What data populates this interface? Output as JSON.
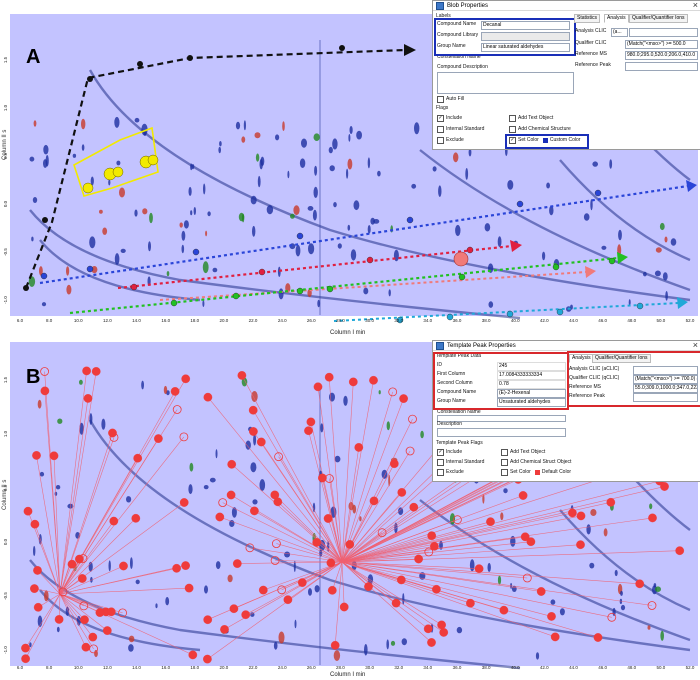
{
  "panel_a": {
    "label": "A",
    "x_axis_label": "Column I min",
    "y_axis_label": "Column II s",
    "x_ticks": [
      "6.0",
      "8.0",
      "10.0",
      "12.0",
      "14.0",
      "16.0",
      "18.0",
      "20.0",
      "22.0",
      "24.0",
      "26.0",
      "28.0",
      "30.0",
      "32.0",
      "34.0",
      "36.0",
      "38.0",
      "40.0",
      "42.0",
      "44.0",
      "46.0",
      "48.0",
      "50.0",
      "52.0"
    ],
    "y_ticks": [
      "1.5",
      "1.0",
      "0.5",
      "0.0",
      "-0.5",
      "-1.0"
    ],
    "dialog": {
      "title": "Blob Properties",
      "labels_heading": "Labels",
      "compound_name_label": "Compound Name",
      "compound_name_value": "Decanal",
      "compound_library_label": "Compound Library",
      "group_name_label": "Group Name",
      "group_name_value": "Linear saturated aldehydes",
      "constellation_label": "Constellation Name",
      "compound_description_label": "Compound Description",
      "auto_fill": "Auto Fill",
      "flags_heading": "Flags",
      "include": "Include",
      "internal_standard": "Internal Standard",
      "exclude": "Exclude",
      "add_text_object": "Add Text Object",
      "add_chemical_structure": "Add Chemical Structure",
      "set_color": "Set Color",
      "custom_color": "Custom Color",
      "tabs": [
        "Statistics",
        "Analysis",
        "Qualifier/Quantifier Ions"
      ],
      "analysis_clic_label": "Analysis CLIC",
      "analysis_clic_value": "(a...",
      "qualifier_clic_label": "Qualifier CLIC",
      "qualifier_clic_value": "(Match(\"<mso>\") >= 500.0",
      "reference_ms_label": "Reference MS",
      "reference_ms_value": "980.0;295.0,520.0;206.0,410.0",
      "reference_peak_label": "Reference Peak"
    }
  },
  "panel_b": {
    "label": "B",
    "x_axis_label": "Column I min",
    "y_axis_label": "Column II s",
    "x_ticks": [
      "6.0",
      "8.0",
      "10.0",
      "12.0",
      "14.0",
      "16.0",
      "18.0",
      "20.0",
      "22.0",
      "24.0",
      "26.0",
      "28.0",
      "30.0",
      "32.0",
      "34.0",
      "36.0",
      "38.0",
      "40.0",
      "42.0",
      "44.0",
      "46.0",
      "48.0",
      "50.0",
      "52.0"
    ],
    "y_ticks": [
      "1.5",
      "1.0",
      "0.5",
      "0.0",
      "-0.5",
      "-1.0"
    ],
    "dialog": {
      "title": "Template Peak Properties",
      "heading": "Template Peak Data",
      "id_label": "ID",
      "id_value": "245",
      "first_column_label": "First Column",
      "first_column_value": "17.0084333333334",
      "second_column_label": "Second Column",
      "second_column_value": "0.78",
      "compound_name_label": "Compound Name",
      "compound_name_value": "(E)-2-Hexenal",
      "group_name_label": "Group Name",
      "group_name_value": "Unsaturated aldehydes",
      "constellation_label": "Constellation Name",
      "description_label": "Description",
      "flags_heading": "Template Peak Flags",
      "include": "Include",
      "internal_standard": "Internal Standard",
      "exclude": "Exclude",
      "add_text_object": "Add Text Object",
      "add_chemical_struct_object": "Add Chemical Struct Object",
      "set_color": "Set Color",
      "default_color": "Default Color",
      "tabs": [
        "Analysis",
        "Qualifier/Quantifier Ions"
      ],
      "analysis_clic_label": "Analysis CLIC (aCLIC)",
      "qualifier_clic_label": "Qualifier CLIC (qCLIC)",
      "qualifier_clic_value": "(Match(\"<mso>\") >= 700.0) &",
      "reference_ms_label": "Reference MS",
      "reference_ms_value": "55.0;309.0,1000.0;347.0,2233.0",
      "reference_peak_label": "Reference Peak"
    }
  },
  "colors": {
    "plot_bg": "#c3c3ff",
    "highlight_blue": "#1a2fb8",
    "highlight_red": "#d8282c",
    "arrow_blue": "#2a45d8",
    "arrow_red": "#e02040",
    "arrow_pink": "#f07a7a",
    "arrow_green": "#22c022",
    "arrow_cyan": "#20a8d8",
    "marker_yellow": "#f2ea00",
    "marker_red": "#ef3b3b"
  }
}
